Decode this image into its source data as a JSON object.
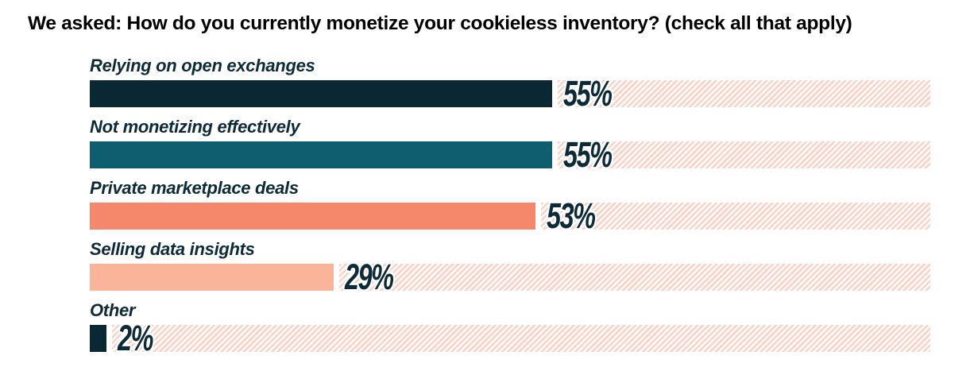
{
  "title": "We asked: How do you currently monetize your cookieless inventory? (check all that apply)",
  "chart_data": {
    "type": "bar",
    "orientation": "horizontal",
    "title": "We asked: How do you currently monetize your cookieless inventory? (check all that apply)",
    "categories": [
      "Relying on open exchanges",
      "Not monetizing effectively",
      "Private marketplace deals",
      "Selling data insights",
      "Other"
    ],
    "values": [
      55,
      55,
      53,
      29,
      2
    ],
    "value_labels": [
      "55%",
      "55%",
      "53%",
      "29%",
      "2%"
    ],
    "xlim": [
      0,
      100
    ],
    "grid": false,
    "legend": false,
    "bar_colors": [
      "#0a2734",
      "#0e5e70",
      "#f5876b",
      "#f9b49a",
      "#0a2734"
    ],
    "track_stripe_color": "#fbd2c6",
    "track_background_color": "#ffffff",
    "category_label_color": "#0c2a38",
    "value_label_color": "#0c2a38",
    "title_color": "#000000"
  }
}
